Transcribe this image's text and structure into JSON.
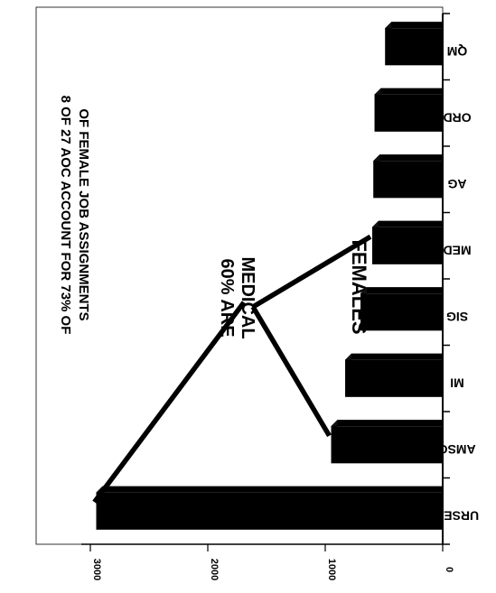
{
  "chart_data": {
    "type": "bar",
    "orientation": "rotated",
    "title": "FEMALES",
    "subtitle_line1": "8 OF 27 AOC ACCOUNT FOR 73% OF",
    "subtitle_line2": "OF FEMALE JOB ASSIGNMENTS",
    "annotation_line1": "60% ARE",
    "annotation_line2": "MEDICAL",
    "annotation_targets": [
      "NURSES",
      "AMSC",
      "MED"
    ],
    "categories": [
      "NURSES",
      "AMSC",
      "MI",
      "SIG",
      "MED",
      "AG",
      "ORD",
      "QM"
    ],
    "category_labels_visible": [
      "URSES",
      "AMSC",
      "MI",
      "SIG",
      "MED",
      "AG",
      "ORD",
      "QM"
    ],
    "values": [
      2950,
      950,
      830,
      700,
      600,
      590,
      580,
      490
    ],
    "ylim": [
      0,
      3000
    ],
    "yticks": [
      0,
      1000,
      2000,
      3000
    ],
    "ytick_labels": [
      "0",
      "1000",
      "2000",
      "3000"
    ],
    "grid": false,
    "colors": {
      "bar": "#000000",
      "background": "#ffffff",
      "ink": "#000000"
    }
  }
}
